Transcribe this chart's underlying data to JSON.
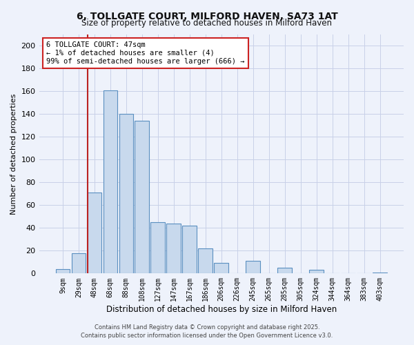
{
  "title": "6, TOLLGATE COURT, MILFORD HAVEN, SA73 1AT",
  "subtitle": "Size of property relative to detached houses in Milford Haven",
  "xlabel": "Distribution of detached houses by size in Milford Haven",
  "ylabel": "Number of detached properties",
  "bar_labels": [
    "9sqm",
    "29sqm",
    "48sqm",
    "68sqm",
    "88sqm",
    "108sqm",
    "127sqm",
    "147sqm",
    "167sqm",
    "186sqm",
    "206sqm",
    "226sqm",
    "245sqm",
    "265sqm",
    "285sqm",
    "305sqm",
    "324sqm",
    "344sqm",
    "364sqm",
    "383sqm",
    "403sqm"
  ],
  "bar_values": [
    4,
    18,
    71,
    161,
    140,
    134,
    45,
    44,
    42,
    22,
    9,
    0,
    11,
    0,
    5,
    0,
    3,
    0,
    0,
    0,
    1
  ],
  "bar_color": "#c8d9ed",
  "bar_edge_color": "#5a8fc0",
  "vline_x_index": 2,
  "vline_color": "#bb2222",
  "ylim": [
    0,
    210
  ],
  "yticks": [
    0,
    20,
    40,
    60,
    80,
    100,
    120,
    140,
    160,
    180,
    200
  ],
  "annotation_title": "6 TOLLGATE COURT: 47sqm",
  "annotation_line1": "← 1% of detached houses are smaller (4)",
  "annotation_line2": "99% of semi-detached houses are larger (666) →",
  "annotation_box_color": "#ffffff",
  "annotation_box_edge": "#cc2222",
  "footer1": "Contains HM Land Registry data © Crown copyright and database right 2025.",
  "footer2": "Contains public sector information licensed under the Open Government Licence v3.0.",
  "bg_color": "#eef2fb",
  "grid_color": "#c8d0e8"
}
